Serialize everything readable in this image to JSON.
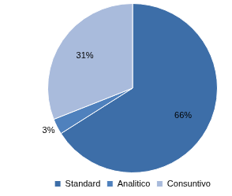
{
  "chart_data": {
    "type": "pie",
    "categories": [
      "Standard",
      "Analitico",
      "Consuntivo"
    ],
    "values": [
      66,
      3,
      31
    ],
    "value_labels": [
      "66%",
      "3%",
      "31%"
    ],
    "data_labels": true,
    "colors": [
      "#3d6ea8",
      "#4f81bd",
      "#a9bbdc"
    ],
    "legend": "bottom"
  }
}
